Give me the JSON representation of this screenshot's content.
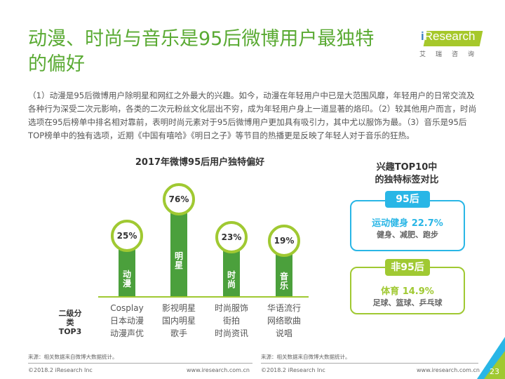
{
  "title": "动漫、时尚与音乐是95后微博用户最独特的偏好",
  "logo": {
    "text_i": "i",
    "text_rest": "Research",
    "cn": "艾瑞咨询"
  },
  "description": "（1）动漫是95后微博用户除明星和网红之外最大的兴趣。如今，动漫在年轻用户中已是大范围风靡，年轻用户的日常交流及各种行为深受二次元影响，各类的二次元粉丝文化层出不穷，成为年轻用户身上一道显著的烙印。（2）较其他用户而言，时尚选项在95后榜单中排名相对靠前，表明时尚元素对于95后微博用户更加具有吸引力，其中尤以服饰为最。（3）音乐是95后TOP榜单中的独有选项，近期《中国有嘻哈》《明日之子》等节目的热播更是反映了年轻人对于音乐的狂热。",
  "chart_data": {
    "type": "bar",
    "title": "2017年微博95后用户独特偏好",
    "categories": [
      "动漫",
      "明星",
      "时尚",
      "音乐"
    ],
    "values": [
      25,
      76,
      23,
      19
    ],
    "value_labels": [
      "25%",
      "76%",
      "23%",
      "19%"
    ],
    "subcategory_label": "二级分类TOP3",
    "subcategories": [
      [
        "Cosplay",
        "日本动漫",
        "动漫声优"
      ],
      [
        "影视明星",
        "国内明星",
        "歌手"
      ],
      [
        "时尚服饰",
        "街拍",
        "时尚资讯"
      ],
      [
        "华语流行",
        "网络歌曲",
        "说唱"
      ]
    ]
  },
  "comparison": {
    "title_line1": "兴趣TOP10中",
    "title_line2": "的独特标签对比",
    "groups": [
      {
        "tag": "95后",
        "main": "运动健身  22.7%",
        "detail": "健身、减肥、跑步",
        "color": "#29b6e6"
      },
      {
        "tag": "非95后",
        "main": "体育 14.9%",
        "detail": "足球、篮球、乒乓球",
        "color": "#a0c932"
      }
    ]
  },
  "footer": {
    "source": "来源：相关数据来自微博大数据统计。",
    "copyright": "©2018.2 iResearch Inc",
    "url": "www.iresearch.com.cn",
    "page": "23"
  }
}
